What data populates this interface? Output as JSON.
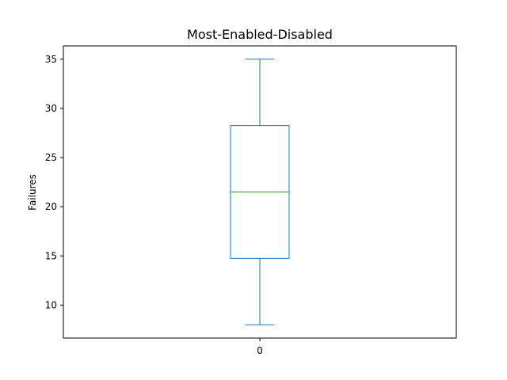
{
  "chart_data": {
    "type": "box",
    "title": "Most-Enabled-Disabled",
    "xlabel": "",
    "ylabel": "Failures",
    "categories": [
      "0"
    ],
    "ylim": [
      6.65,
      36.35
    ],
    "yticks": [
      10,
      15,
      20,
      25,
      30,
      35
    ],
    "grid": false,
    "boxes": [
      {
        "category": "0",
        "whisker_low": 8,
        "q1": 14.75,
        "median": 21.5,
        "q3": 28.25,
        "whisker_high": 35
      }
    ],
    "colors": {
      "box": "#1f77b4",
      "median": "#2ca02c",
      "axes": "#000000"
    }
  }
}
